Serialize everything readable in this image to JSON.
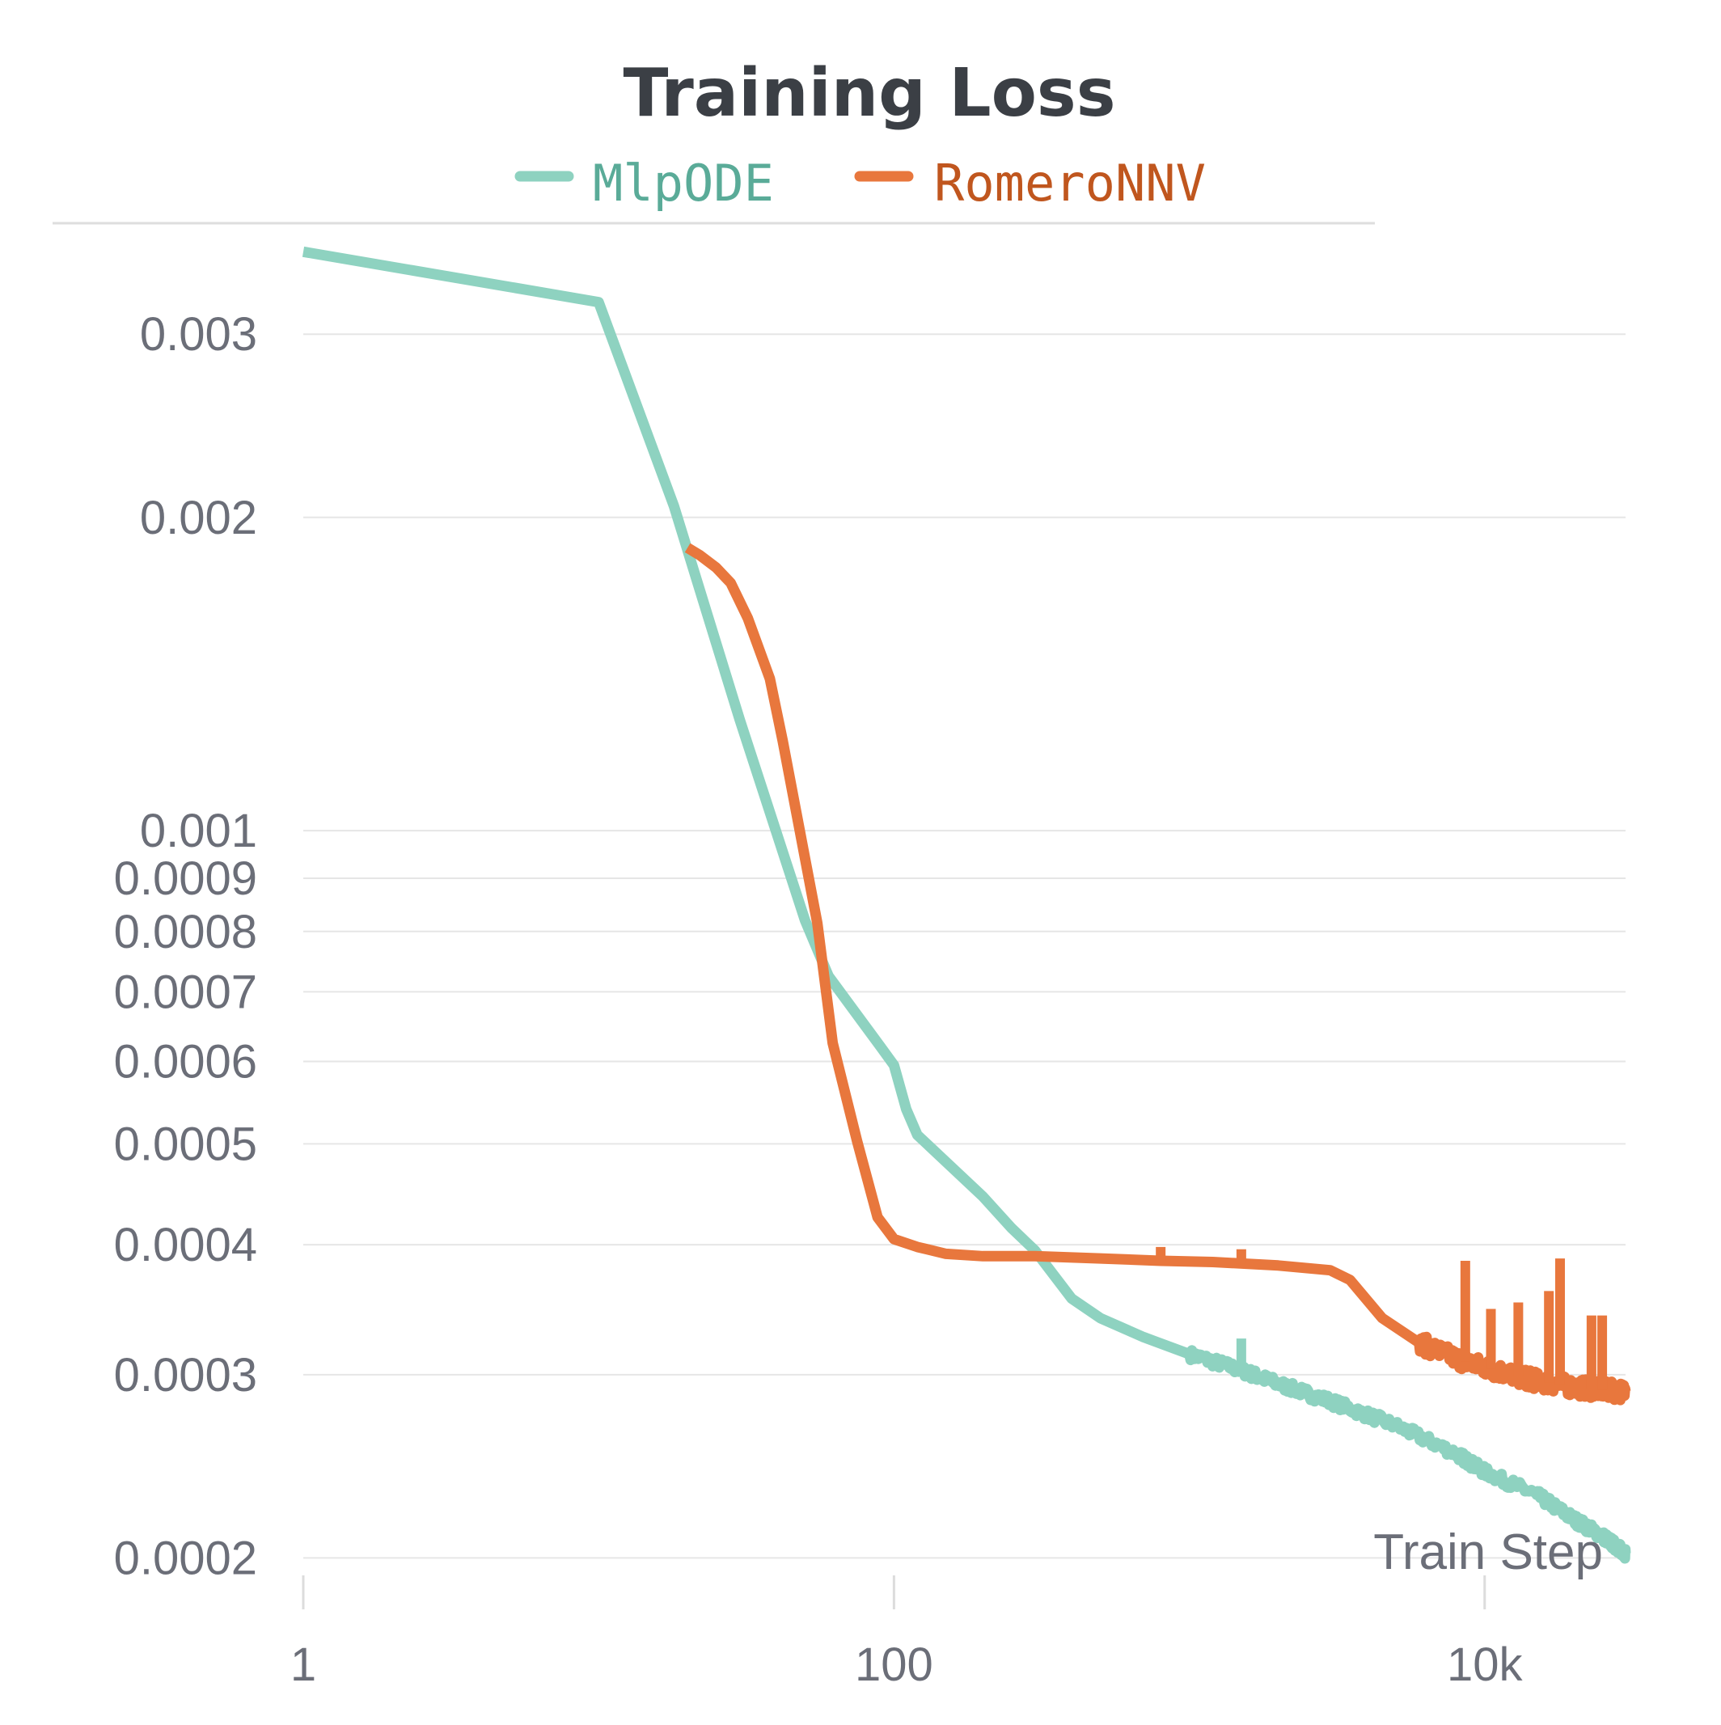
{
  "chart_data": {
    "type": "line",
    "title": "Training Loss",
    "xlabel": "Train Step",
    "ylabel": "",
    "x_scale": "log",
    "y_scale": "log",
    "xlim": [
      1,
      30000
    ],
    "ylim": [
      0.000185,
      0.0037
    ],
    "grid": "horizontal",
    "legend_position": "top-center",
    "x_ticks": [
      {
        "value": 1,
        "label": "1"
      },
      {
        "value": 100,
        "label": "100"
      },
      {
        "value": 10000,
        "label": "10k"
      }
    ],
    "y_ticks": [
      {
        "value": 0.003,
        "label": "0.003"
      },
      {
        "value": 0.002,
        "label": "0.002"
      },
      {
        "value": 0.001,
        "label": "0.001"
      },
      {
        "value": 0.0009,
        "label": "0.0009"
      },
      {
        "value": 0.0008,
        "label": "0.0008"
      },
      {
        "value": 0.0007,
        "label": "0.0007"
      },
      {
        "value": 0.0006,
        "label": "0.0006"
      },
      {
        "value": 0.0005,
        "label": "0.0005"
      },
      {
        "value": 0.0004,
        "label": "0.0004"
      },
      {
        "value": 0.0003,
        "label": "0.0003"
      },
      {
        "value": 0.0002,
        "label": "0.0002"
      }
    ],
    "series": [
      {
        "name": "MlpODE",
        "color": "#8ed2c0",
        "text_color": "#5aab98",
        "points": [
          [
            1,
            0.0036
          ],
          [
            10,
            0.00322
          ],
          [
            18,
            0.00205
          ],
          [
            30,
            0.00128
          ],
          [
            50,
            0.00082
          ],
          [
            60,
            0.000725
          ],
          [
            90,
            0.00062
          ],
          [
            100,
            0.000595
          ],
          [
            110,
            0.00054
          ],
          [
            120,
            0.00051
          ],
          [
            200,
            0.000445
          ],
          [
            250,
            0.000415
          ],
          [
            300,
            0.000395
          ],
          [
            400,
            0.000355
          ],
          [
            500,
            0.00034
          ],
          [
            700,
            0.000326
          ],
          [
            1000,
            0.000314
          ],
          [
            1500,
            0.000303
          ],
          [
            2000,
            0.000294
          ],
          [
            3000,
            0.000283
          ],
          [
            5000,
            0.000268
          ],
          [
            8000,
            0.000252
          ],
          [
            10000,
            0.000242
          ],
          [
            15000,
            0.00023
          ],
          [
            20000,
            0.000218
          ],
          [
            25000,
            0.00021
          ],
          [
            28000,
            0.000205
          ],
          [
            30000,
            0.000202
          ]
        ],
        "spikes": [
          [
            1500,
            0.000325
          ]
        ]
      },
      {
        "name": "RomeroNNV",
        "color": "#e8773d",
        "text_color": "#c0561e",
        "points": [
          [
            20,
            0.00187
          ],
          [
            22,
            0.00184
          ],
          [
            25,
            0.00179
          ],
          [
            28,
            0.00173
          ],
          [
            32,
            0.0016
          ],
          [
            38,
            0.0014
          ],
          [
            42,
            0.00122
          ],
          [
            55,
            0.000815
          ],
          [
            62,
            0.000625
          ],
          [
            75,
            0.000503
          ],
          [
            88,
            0.000425
          ],
          [
            100,
            0.000405
          ],
          [
            120,
            0.000398
          ],
          [
            150,
            0.000392
          ],
          [
            200,
            0.00039
          ],
          [
            300,
            0.00039
          ],
          [
            500,
            0.000388
          ],
          [
            800,
            0.000386
          ],
          [
            1200,
            0.000385
          ],
          [
            2000,
            0.000382
          ],
          [
            3000,
            0.000378
          ],
          [
            3500,
            0.00037
          ],
          [
            4500,
            0.00034
          ],
          [
            6000,
            0.000322
          ],
          [
            8000,
            0.000311
          ],
          [
            10000,
            0.000305
          ],
          [
            13000,
            0.000299
          ],
          [
            15000,
            0.000296
          ],
          [
            20000,
            0.000292
          ],
          [
            25000,
            0.00029
          ],
          [
            30000,
            0.000289
          ]
        ],
        "spikes": [
          [
            800,
            0.000398
          ],
          [
            1500,
            0.000396
          ],
          [
            8600,
            0.000386
          ],
          [
            10500,
            0.000347
          ],
          [
            13000,
            0.000352
          ],
          [
            16500,
            0.000361
          ],
          [
            18000,
            0.000388
          ],
          [
            23000,
            0.000342
          ],
          [
            25000,
            0.000342
          ]
        ]
      }
    ]
  }
}
